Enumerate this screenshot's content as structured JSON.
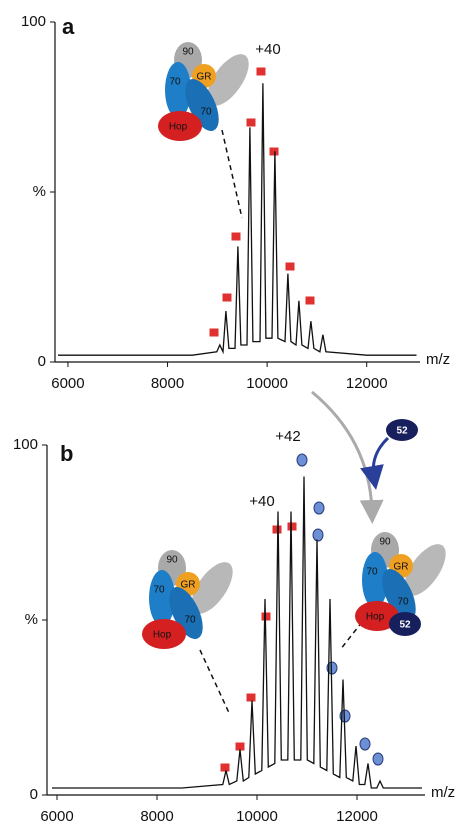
{
  "chart_data": [
    {
      "type": "line",
      "panel_label": "a",
      "xlabel": "m/z",
      "color": "#111111",
      "x": [
        5800,
        7000,
        8500,
        8990,
        9050,
        9113,
        9173,
        9233,
        9354,
        9414,
        9474,
        9595,
        9655,
        9715,
        9856,
        9916,
        9976,
        10097,
        10157,
        10217,
        10358,
        10418,
        10478,
        10579,
        10639,
        10699,
        10820,
        10880,
        10940,
        11060,
        11120,
        11180,
        12000,
        13000
      ],
      "values": [
        2,
        2,
        2,
        3,
        5,
        3,
        15,
        4,
        4,
        34,
        5,
        5,
        69,
        6,
        6,
        82,
        7,
        7,
        62,
        7,
        6,
        26,
        6,
        5,
        18,
        5,
        4,
        12,
        4,
        3,
        8,
        3,
        2,
        2
      ],
      "xlim": [
        5740,
        13070
      ],
      "ylim": [
        0,
        100
      ],
      "xticks": [
        6000,
        8000,
        10000,
        12000
      ],
      "yticks": [
        0,
        {
          "value": 50,
          "label": "%"
        },
        100
      ],
      "annotations": [
        "+40"
      ]
    },
    {
      "type": "line",
      "panel_label": "b",
      "xlabel": "m/z",
      "color": "#111111",
      "x": [
        5900,
        7000,
        8500,
        9315,
        9380,
        9445,
        9595,
        9660,
        9725,
        9835,
        9900,
        9965,
        10095,
        10160,
        10225,
        10355,
        10420,
        10485,
        10615,
        10680,
        10745,
        10875,
        10940,
        11005,
        11135,
        11200,
        11265,
        11395,
        11460,
        11525,
        11655,
        11720,
        11785,
        11915,
        11980,
        12045,
        12155,
        12220,
        12285,
        12395,
        12460,
        12525,
        13300
      ],
      "values": [
        2,
        2,
        2,
        3,
        7,
        3,
        4,
        13,
        4,
        5,
        27,
        6,
        7,
        56,
        8,
        9,
        81,
        10,
        10,
        81,
        10,
        10,
        91,
        10,
        9,
        73,
        8,
        7,
        56,
        6,
        5,
        33,
        5,
        4,
        14,
        3,
        3,
        9,
        2,
        2,
        4,
        2,
        2
      ],
      "xlim": [
        5800,
        13360
      ],
      "ylim": [
        0,
        100
      ],
      "xticks": [
        6000,
        8000,
        10000,
        12000
      ],
      "yticks": [
        0,
        {
          "value": 50,
          "label": "%"
        },
        100
      ],
      "annotations": [
        "+40",
        "+42"
      ]
    }
  ],
  "complex_labels": [
    "90",
    "GR",
    "70",
    "Hop",
    "52"
  ]
}
